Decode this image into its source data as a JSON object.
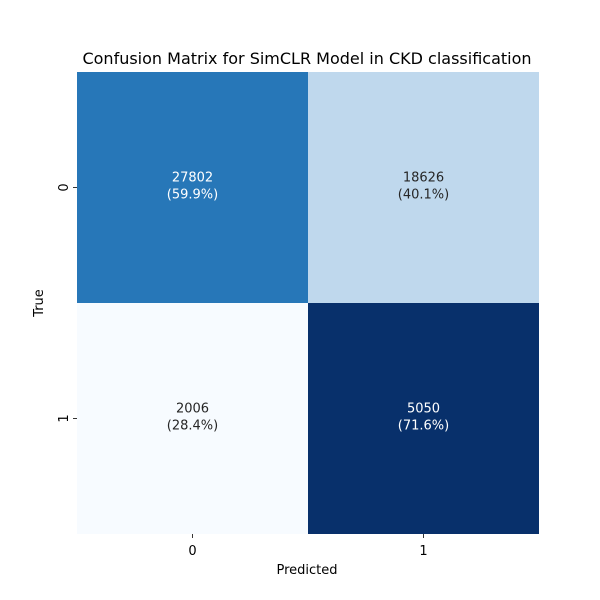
{
  "chart_data": {
    "type": "heatmap",
    "title": "Confusion Matrix for SimCLR Model in CKD classification",
    "xlabel": "Predicted",
    "ylabel": "True",
    "x_categories": [
      "0",
      "1"
    ],
    "y_categories": [
      "0",
      "1"
    ],
    "values": [
      [
        27802,
        18626
      ],
      [
        2006,
        5050
      ]
    ],
    "percent_labels": [
      [
        "(59.9%)",
        "(40.1%)"
      ],
      [
        "(28.4%)",
        "(71.6%)"
      ]
    ],
    "colormap": "Blues",
    "colorbar": false,
    "grid": false
  }
}
